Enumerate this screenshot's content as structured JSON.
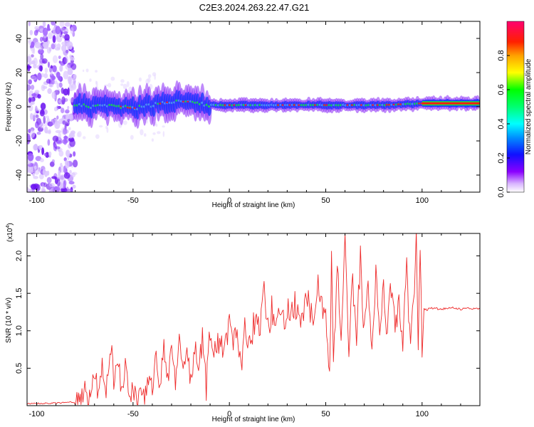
{
  "title": "C2E3.2024.263.22.47.G21",
  "colors": {
    "snr_line": "#ee2a2a",
    "spectrum_band": "#4aa0f0",
    "ridge_core": "#ff1a10",
    "ridge_mid": "#11e840",
    "noise_purple": "#7a2af0"
  },
  "chart_data": [
    {
      "id": "spectrogram",
      "type": "heatmap",
      "xlabel": "Height of straight line (km)",
      "ylabel": "Frequency (Hz)",
      "xlim": [
        -105,
        130
      ],
      "ylim": [
        -50,
        50
      ],
      "xticks": [
        -100,
        -50,
        0,
        50,
        100
      ],
      "yticks": [
        -40,
        -20,
        0,
        20,
        40
      ],
      "ridge_center_hz": [
        [
          -80,
          1
        ],
        [
          -70,
          0
        ],
        [
          -60,
          1
        ],
        [
          -50,
          -1
        ],
        [
          -40,
          1
        ],
        [
          -30,
          3
        ],
        [
          -20,
          3
        ],
        [
          -10,
          1
        ],
        [
          0,
          1
        ],
        [
          20,
          1
        ],
        [
          40,
          1
        ],
        [
          60,
          1
        ],
        [
          80,
          1
        ],
        [
          100,
          2
        ],
        [
          130,
          2
        ]
      ],
      "colorbar": {
        "label": "Normalized spectral amplitude",
        "range": [
          0.0,
          1.0
        ],
        "ticks": [
          "0.0",
          "0.2",
          "0.4",
          "0.6",
          "0.8"
        ],
        "colormap": [
          "#ffffff",
          "#8a00ff",
          "#0000ff",
          "#00a0ff",
          "#00ffff",
          "#00ff80",
          "#00ff00",
          "#ffff00",
          "#ffa000",
          "#ff0000",
          "#ff0066"
        ]
      }
    },
    {
      "id": "snr",
      "type": "line",
      "xlabel": "Height of straight line (km)",
      "ylabel": "SNR (10 * v/v)",
      "scale_label": "(x10",
      "scale_exp": "4",
      "xlim": [
        -105,
        130
      ],
      "ylim": [
        0,
        2.3
      ],
      "xticks": [
        -100,
        -50,
        0,
        50,
        100
      ],
      "yticks": [
        "0.5",
        "1.0",
        "1.5",
        "2.0"
      ],
      "series": [
        {
          "x": [
            -105,
            -95,
            -85,
            -80,
            -77,
            -75,
            -73,
            -70,
            -68,
            -66,
            -64,
            -62,
            -61,
            -60,
            -58,
            -56,
            -54,
            -52,
            -50,
            -48,
            -46,
            -44,
            -42,
            -40,
            -38,
            -36,
            -34,
            -32,
            -30,
            -28,
            -26,
            -24,
            -22,
            -20,
            -18,
            -16,
            -14,
            -12,
            -10,
            -8,
            -6,
            -4,
            -2,
            0,
            2,
            4,
            6,
            8,
            10,
            12,
            14,
            16,
            18,
            20,
            22,
            24,
            26,
            28,
            30,
            32,
            34,
            36,
            38,
            40,
            42,
            44,
            46,
            48,
            50,
            52,
            53,
            54,
            56,
            58,
            60,
            62,
            64,
            66,
            68,
            70,
            72,
            74,
            76,
            78,
            80,
            82,
            84,
            86,
            88,
            90,
            92,
            94,
            96,
            97,
            98,
            99,
            100,
            101,
            102,
            105,
            110,
            115,
            120,
            125,
            130
          ],
          "y": [
            0.03,
            0.03,
            0.04,
            0.05,
            0.1,
            0.2,
            0.1,
            0.45,
            0.15,
            0.55,
            0.2,
            0.7,
            0.91,
            0.3,
            0.65,
            0.2,
            0.5,
            0.1,
            0.25,
            0.1,
            0.3,
            0.05,
            0.35,
            0.2,
            0.75,
            0.25,
            0.85,
            0.3,
            0.78,
            0.35,
            0.92,
            0.4,
            0.7,
            0.3,
            0.8,
            0.3,
            0.95,
            0.2,
            1.05,
            0.7,
            0.93,
            0.75,
            0.85,
            1.05,
            0.9,
            1.15,
            0.45,
            1.2,
            0.8,
            1.0,
            1.26,
            1.02,
            1.5,
            1.05,
            1.27,
            1.0,
            1.35,
            1.1,
            1.3,
            1.15,
            1.4,
            1.2,
            1.25,
            1.55,
            1.3,
            1.25,
            1.6,
            1.35,
            1.2,
            0.42,
            2.0,
            0.5,
            1.8,
            0.9,
            2.15,
            0.6,
            1.7,
            0.9,
            1.95,
            0.95,
            1.6,
            0.8,
            1.7,
            0.9,
            1.55,
            1.0,
            1.6,
            0.95,
            1.5,
            0.85,
            1.8,
            0.7,
            1.55,
            2.29,
            0.85,
            2.0,
            0.65,
            1.3,
            1.28,
            1.3,
            1.29,
            1.31,
            1.29,
            1.3,
            1.29
          ]
        }
      ]
    }
  ]
}
